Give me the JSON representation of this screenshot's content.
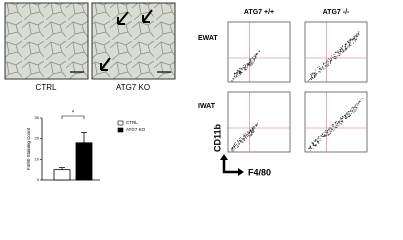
{
  "micrographs": [
    {
      "label": "CTRL"
    },
    {
      "label": "ATG7 KO"
    }
  ],
  "chart_data": {
    "type": "bar",
    "ylabel": "F4/80 Staining Count",
    "categories": [
      null
    ],
    "series": [
      {
        "name": "CTRL",
        "color": "#ffffff",
        "values": [
          5
        ],
        "errors": [
          1
        ]
      },
      {
        "name": "ATG7 KO",
        "color": "#000000",
        "values": [
          18
        ],
        "errors": [
          5
        ]
      }
    ],
    "ylim": [
      0,
      30
    ],
    "yticks": [
      0,
      10,
      20,
      30
    ],
    "annotation": "*"
  },
  "flow": {
    "columns": [
      "ATG7 +/+",
      "ATG7 -/-"
    ],
    "rows": [
      "EWAT",
      "IWAT"
    ],
    "y_axis": "CD11b",
    "x_axis": "F4/80"
  }
}
